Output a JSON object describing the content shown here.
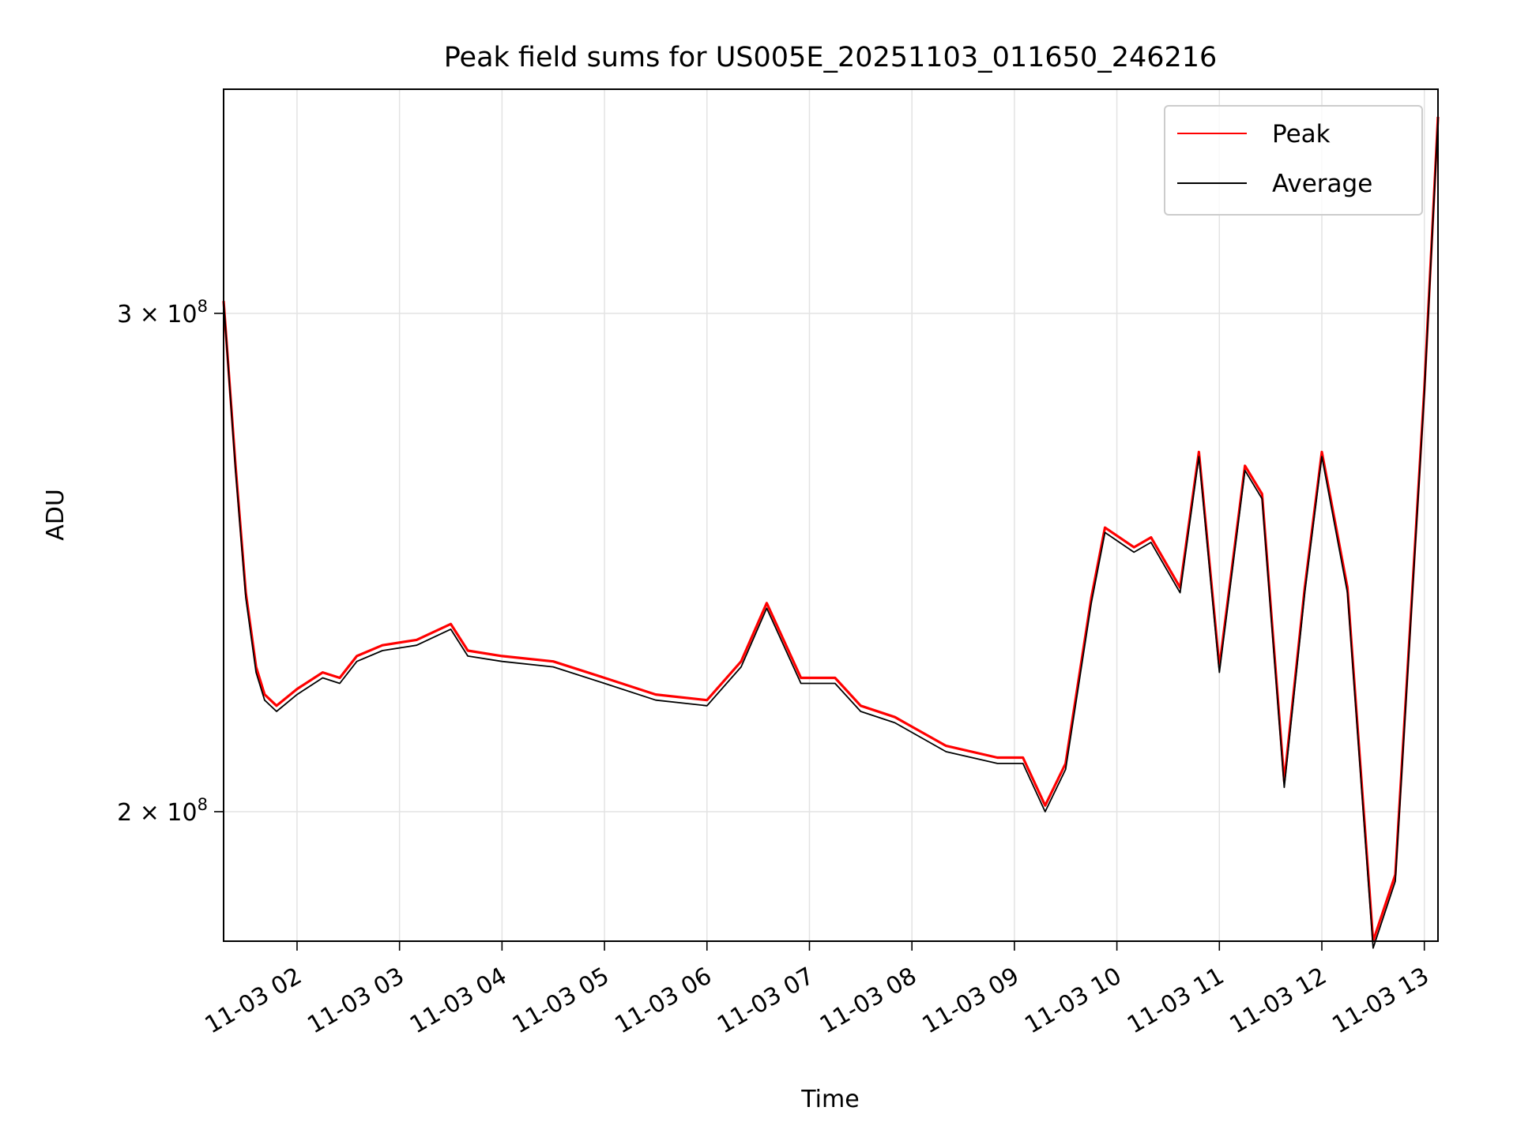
{
  "chart_data": {
    "type": "line",
    "title": "Peak field sums for US005E_20251103_011650_246216",
    "xlabel": "Time",
    "ylabel": "ADU",
    "y_scale": "log",
    "grid": true,
    "legend_position": "top-right",
    "xlim": [
      "11-03 01:17",
      "11-03 13:08"
    ],
    "ylim": [
      180000000,
      360000000
    ],
    "x_ticks": [
      "11-03 02",
      "11-03 03",
      "11-03 04",
      "11-03 05",
      "11-03 06",
      "11-03 07",
      "11-03 08",
      "11-03 09",
      "11-03 10",
      "11-03 11",
      "11-03 12",
      "11-03 13"
    ],
    "y_ticks": [
      {
        "value": 200000000,
        "mantissa": "2",
        "base": "10",
        "exponent": "8"
      },
      {
        "value": 300000000,
        "mantissa": "3",
        "base": "10",
        "exponent": "8"
      }
    ],
    "colors": {
      "peak": "#ff0000",
      "average": "#000000",
      "grid": "#e3e3e3"
    },
    "series": [
      {
        "name": "Peak",
        "color": "#ff0000",
        "x": [
          "11-03 01:17",
          "11-03 01:24",
          "11-03 01:30",
          "11-03 01:36",
          "11-03 01:41",
          "11-03 01:48",
          "11-03 02:00",
          "11-03 02:15",
          "11-03 02:25",
          "11-03 02:35",
          "11-03 02:50",
          "11-03 03:10",
          "11-03 03:30",
          "11-03 03:40",
          "11-03 04:00",
          "11-03 04:30",
          "11-03 05:00",
          "11-03 05:30",
          "11-03 06:00",
          "11-03 06:20",
          "11-03 06:35",
          "11-03 06:55",
          "11-03 07:15",
          "11-03 07:30",
          "11-03 07:50",
          "11-03 08:20",
          "11-03 08:50",
          "11-03 09:05",
          "11-03 09:18",
          "11-03 09:30",
          "11-03 09:45",
          "11-03 09:53",
          "11-03 10:10",
          "11-03 10:20",
          "11-03 10:37",
          "11-03 10:48",
          "11-03 11:00",
          "11-03 11:15",
          "11-03 11:25",
          "11-03 11:38",
          "11-03 11:50",
          "11-03 12:00",
          "11-03 12:15",
          "11-03 12:30",
          "11-03 12:43",
          "11-03 13:00",
          "11-03 13:08"
        ],
        "values": [
          303000000,
          265000000,
          239000000,
          225000000,
          220000000,
          218000000,
          221000000,
          224000000,
          223000000,
          227000000,
          229000000,
          230000000,
          233000000,
          228000000,
          227000000,
          226000000,
          223000000,
          220000000,
          219000000,
          226000000,
          237000000,
          223000000,
          223000000,
          218000000,
          216000000,
          211000000,
          209000000,
          209000000,
          201000000,
          208000000,
          238000000,
          252000000,
          248000000,
          250000000,
          240000000,
          268000000,
          225000000,
          265000000,
          259000000,
          205000000,
          240000000,
          268000000,
          240000000,
          180000000,
          190000000,
          282000000,
          352000000
        ]
      },
      {
        "name": "Average",
        "color": "#000000",
        "x": [
          "11-03 01:17",
          "11-03 01:24",
          "11-03 01:30",
          "11-03 01:36",
          "11-03 01:41",
          "11-03 01:48",
          "11-03 02:00",
          "11-03 02:15",
          "11-03 02:25",
          "11-03 02:35",
          "11-03 02:50",
          "11-03 03:10",
          "11-03 03:30",
          "11-03 03:40",
          "11-03 04:00",
          "11-03 04:30",
          "11-03 05:00",
          "11-03 05:30",
          "11-03 06:00",
          "11-03 06:20",
          "11-03 06:35",
          "11-03 06:55",
          "11-03 07:15",
          "11-03 07:30",
          "11-03 07:50",
          "11-03 08:20",
          "11-03 08:50",
          "11-03 09:05",
          "11-03 09:18",
          "11-03 09:30",
          "11-03 09:45",
          "11-03 09:53",
          "11-03 10:10",
          "11-03 10:20",
          "11-03 10:37",
          "11-03 10:48",
          "11-03 11:00",
          "11-03 11:15",
          "11-03 11:25",
          "11-03 11:38",
          "11-03 11:50",
          "11-03 12:00",
          "11-03 12:15",
          "11-03 12:30",
          "11-03 12:43",
          "11-03 13:00",
          "11-03 13:08"
        ],
        "values": [
          303000000,
          264000000,
          238000000,
          224000000,
          219000000,
          217000000,
          220000000,
          223000000,
          222000000,
          226000000,
          228000000,
          229000000,
          232000000,
          227000000,
          226000000,
          225000000,
          222000000,
          219000000,
          218000000,
          225000000,
          236000000,
          222000000,
          222000000,
          217000000,
          215000000,
          210000000,
          208000000,
          208000000,
          200000000,
          207000000,
          237000000,
          251000000,
          247000000,
          249000000,
          239000000,
          267000000,
          224000000,
          264000000,
          258000000,
          204000000,
          239000000,
          267000000,
          239000000,
          179000000,
          189000000,
          281000000,
          351000000
        ]
      }
    ]
  }
}
